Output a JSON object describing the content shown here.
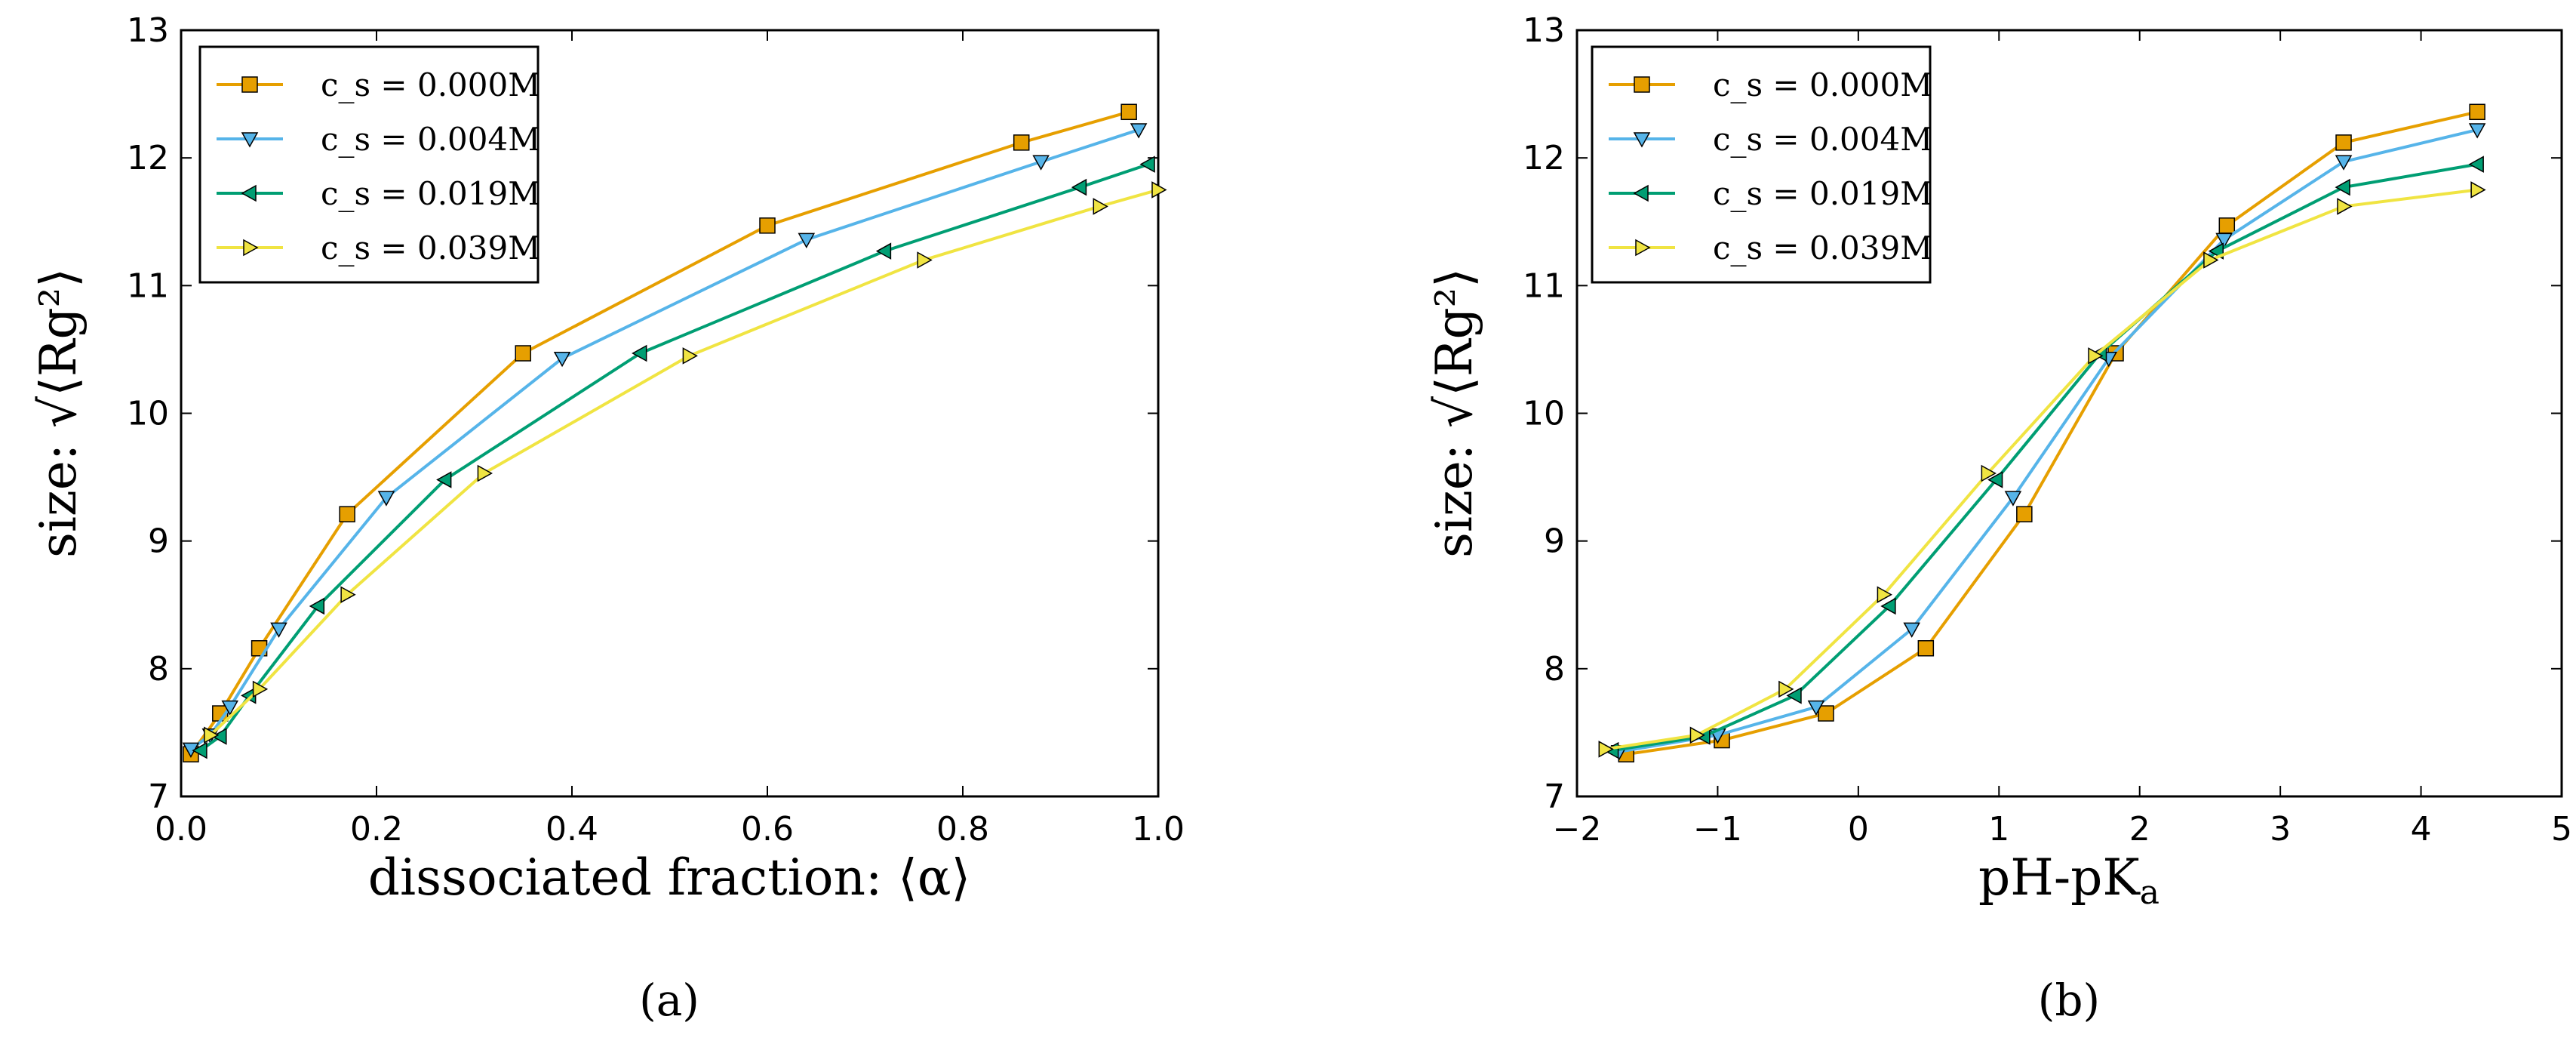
{
  "colors": {
    "c0000": "#E69F00",
    "c0004": "#56B4E9",
    "c0019": "#009E73",
    "c0039": "#F0E442"
  },
  "chart_data": [
    {
      "id": "a",
      "type": "line",
      "subfigure_label": "(a)",
      "xlabel": "dissociated fraction: ⟨α⟩",
      "ylabel": "size: √⟨Rg²⟩",
      "xlim": [
        0.0,
        1.0
      ],
      "ylim": [
        7,
        13
      ],
      "xticks": [
        "0.0",
        "0.2",
        "0.4",
        "0.6",
        "0.8",
        "1.0"
      ],
      "yticks": [
        "7",
        "8",
        "9",
        "10",
        "11",
        "12",
        "13"
      ],
      "legend_position": "top-left",
      "series": [
        {
          "name": "c_s = 0.000M",
          "marker": "square",
          "color_key": "c0000",
          "x": [
            0.01,
            0.04,
            0.08,
            0.17,
            0.35,
            0.6,
            0.86,
            0.97
          ],
          "y": [
            7.33,
            7.65,
            8.16,
            9.21,
            10.47,
            11.47,
            12.12,
            12.36
          ]
        },
        {
          "name": "c_s = 0.004M",
          "marker": "triangle-down",
          "color_key": "c0004",
          "x": [
            0.01,
            0.03,
            0.05,
            0.1,
            0.21,
            0.39,
            0.64,
            0.88,
            0.98
          ],
          "y": [
            7.37,
            7.48,
            7.7,
            8.31,
            9.34,
            10.43,
            11.36,
            11.97,
            12.22
          ]
        },
        {
          "name": "c_s = 0.019M",
          "marker": "triangle-left",
          "color_key": "c0019",
          "x": [
            0.02,
            0.04,
            0.07,
            0.14,
            0.27,
            0.47,
            0.72,
            0.92,
            0.99
          ],
          "y": [
            7.36,
            7.47,
            7.79,
            8.49,
            9.48,
            10.47,
            11.27,
            11.77,
            11.95
          ]
        },
        {
          "name": "c_s = 0.039M",
          "marker": "triangle-right",
          "color_key": "c0039",
          "x": [
            0.03,
            0.08,
            0.17,
            0.31,
            0.52,
            0.76,
            0.94,
            1.0
          ],
          "y": [
            7.48,
            7.84,
            8.58,
            9.53,
            10.45,
            11.2,
            11.62,
            11.75
          ]
        }
      ]
    },
    {
      "id": "b",
      "type": "line",
      "subfigure_label": "(b)",
      "xlabel": "pH-pK",
      "xlabel_sub": "a",
      "ylabel": "size: √⟨Rg²⟩",
      "xlim": [
        -2,
        5
      ],
      "ylim": [
        7,
        13
      ],
      "xticks": [
        "−2",
        "−1",
        "0",
        "1",
        "2",
        "3",
        "4",
        "5"
      ],
      "yticks": [
        "7",
        "8",
        "9",
        "10",
        "11",
        "12",
        "13"
      ],
      "legend_position": "top-left",
      "series": [
        {
          "name": "c_s = 0.000M",
          "marker": "square",
          "color_key": "c0000",
          "x": [
            -1.65,
            -0.97,
            -0.23,
            0.48,
            1.18,
            1.83,
            2.62,
            3.45,
            4.4
          ],
          "y": [
            7.33,
            7.44,
            7.65,
            8.16,
            9.21,
            10.47,
            11.47,
            12.12,
            12.36
          ]
        },
        {
          "name": "c_s = 0.004M",
          "marker": "triangle-down",
          "color_key": "c0004",
          "x": [
            -1.7,
            -1.0,
            -0.3,
            0.38,
            1.1,
            1.78,
            2.6,
            3.45,
            4.4
          ],
          "y": [
            7.35,
            7.48,
            7.7,
            8.31,
            9.34,
            10.43,
            11.36,
            11.97,
            12.22
          ]
        },
        {
          "name": "c_s = 0.019M",
          "marker": "triangle-left",
          "color_key": "c0019",
          "x": [
            -1.75,
            -1.1,
            -0.45,
            0.22,
            0.98,
            1.72,
            2.55,
            3.45,
            4.4
          ],
          "y": [
            7.36,
            7.47,
            7.79,
            8.49,
            9.48,
            10.47,
            11.27,
            11.77,
            11.95
          ]
        },
        {
          "name": "c_s = 0.039M",
          "marker": "triangle-right",
          "color_key": "c0039",
          "x": [
            -1.8,
            -1.15,
            -0.52,
            0.18,
            0.92,
            1.68,
            2.5,
            3.45,
            4.4
          ],
          "y": [
            7.37,
            7.48,
            7.84,
            8.58,
            9.53,
            10.45,
            11.2,
            11.62,
            11.75
          ]
        }
      ]
    }
  ]
}
